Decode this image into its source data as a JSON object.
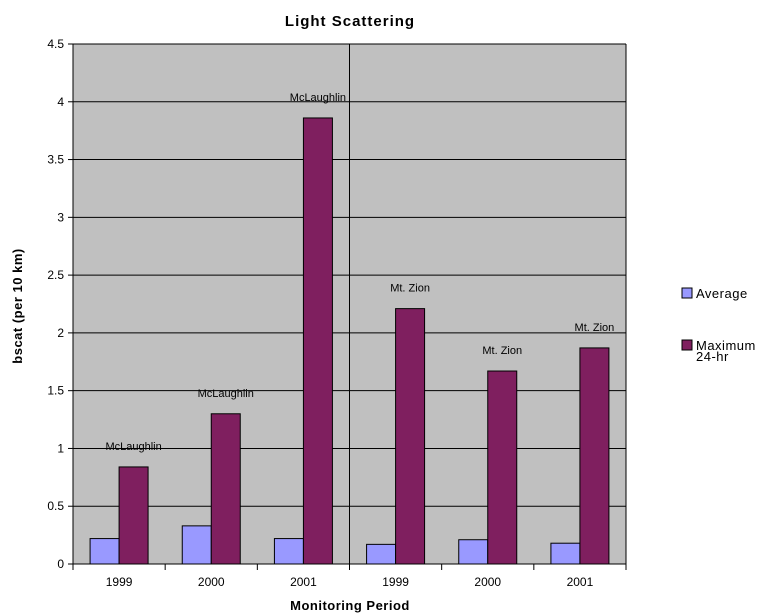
{
  "chart_data": {
    "type": "bar",
    "title": "Light Scattering",
    "xlabel": "Monitoring Period",
    "ylabel": "bscat (per 10 km)",
    "ylim": [
      0,
      4.5
    ],
    "yticks": [
      "0",
      "0.5",
      "1",
      "1.5",
      "2",
      "2.5",
      "3",
      "3.5",
      "4",
      "4.5"
    ],
    "categories": [
      "1999",
      "2000",
      "2001",
      "1999",
      "2000",
      "2001"
    ],
    "series": [
      {
        "name": "Average",
        "color": "#9999ff",
        "values": [
          0.22,
          0.33,
          0.22,
          0.17,
          0.21,
          0.18
        ]
      },
      {
        "name": "Maximum 24-hr",
        "color": "#7f1f5f",
        "values": [
          0.84,
          1.3,
          3.86,
          2.21,
          1.67,
          1.87
        ]
      }
    ],
    "site_labels": [
      "McLaughlin",
      "McLaughlin",
      "McLaughlin",
      "Mt. Zion",
      "Mt. Zion",
      "Mt. Zion"
    ],
    "grid": true,
    "plot_background": "#c0c0c0",
    "legend": {
      "position": "right",
      "entries": [
        {
          "lines": [
            "Average"
          ],
          "color": "#9999ff"
        },
        {
          "lines": [
            "Maximum",
            "24-hr"
          ],
          "color": "#7f1f5f"
        }
      ]
    }
  }
}
